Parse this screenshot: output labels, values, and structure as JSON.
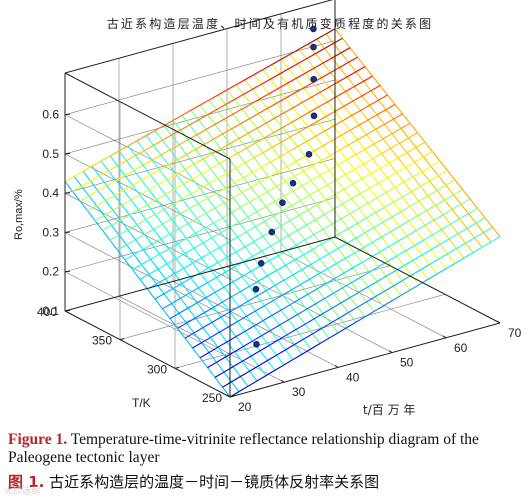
{
  "figure": {
    "caption_en_label": "Figure 1.",
    "caption_en_text": "Temperature-time-vitrinite reflectance relationship diagram of the Paleogene tectonic layer",
    "caption_cn_label": "图 1.",
    "caption_cn_text": "古近系构造层的温度－时间－镜质体反射率关系图",
    "watermark": "大印远纲"
  },
  "chart_data": {
    "type": "surface3d",
    "title": "古近系构造层温度、时间及有机质变质程度的关系图",
    "zlabel": "Ro,max/%",
    "xlabel": "t/百 万 年",
    "ylabel": "T/K",
    "x_axis": {
      "label": "t/百 万 年",
      "ticks": [
        20,
        30,
        40,
        50,
        60,
        70
      ],
      "range": [
        20,
        70
      ]
    },
    "y_axis": {
      "label": "T/K",
      "ticks": [
        250,
        300,
        350,
        400
      ],
      "range": [
        250,
        400
      ]
    },
    "z_axis": {
      "label": "Ro,max/%",
      "ticks": [
        "0.1",
        "0.2",
        "0.3",
        "0.4",
        "0.5",
        "0.6"
      ],
      "range": [
        0.1,
        0.6
      ]
    },
    "grid": true,
    "colormap": "jet",
    "surface": {
      "z_at_corners": {
        "t20_T250": 0.1,
        "t70_T250": 0.32,
        "t20_T400": 0.43,
        "t70_T400": 0.63
      }
    },
    "points": [
      {
        "t": 30,
        "T": 275,
        "ro": 0.16
      },
      {
        "t": 35,
        "T": 300,
        "ro": 0.245
      },
      {
        "t": 38,
        "T": 310,
        "ro": 0.285
      },
      {
        "t": 42,
        "T": 320,
        "ro": 0.335
      },
      {
        "t": 46,
        "T": 330,
        "ro": 0.38
      },
      {
        "t": 50,
        "T": 340,
        "ro": 0.4
      },
      {
        "t": 55,
        "T": 350,
        "ro": 0.44
      },
      {
        "t": 60,
        "T": 370,
        "ro": 0.49
      },
      {
        "t": 63,
        "T": 385,
        "ro": 0.55
      },
      {
        "t": 65,
        "T": 395,
        "ro": 0.61
      },
      {
        "t": 66,
        "T": 400,
        "ro": 0.645
      }
    ]
  }
}
